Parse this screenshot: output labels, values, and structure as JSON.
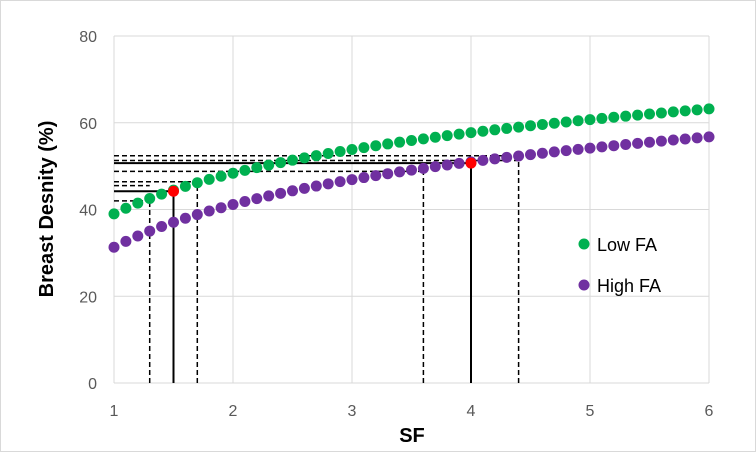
{
  "chart_data": {
    "type": "scatter",
    "xlabel": "SF",
    "ylabel": "Breast Desnity (%)",
    "xlim": [
      1,
      6
    ],
    "ylim": [
      0,
      80
    ],
    "x_ticks": [
      "1",
      "2",
      "3",
      "4",
      "5",
      "6"
    ],
    "y_ticks": [
      "0",
      "20",
      "40",
      "60",
      "80"
    ],
    "grid": "major",
    "legend_position": "right",
    "series": [
      {
        "name": "Low FA",
        "color": "#00B050",
        "x_start": 1.0,
        "x_step": 0.1,
        "a": 39.0,
        "b": 13.5
      },
      {
        "name": "High FA",
        "color": "#7030A0",
        "x_start": 1.0,
        "x_step": 0.1,
        "a": 31.3,
        "b": 14.2
      }
    ],
    "highlight_points": [
      {
        "x": 1.5,
        "y": 44.2,
        "color": "#FF0000"
      },
      {
        "x": 4.0,
        "y": 50.7,
        "color": "#FF0000"
      }
    ],
    "reference_lines": {
      "solid": [
        {
          "x": 1.5,
          "y": 44.2
        },
        {
          "x": 4.0,
          "y": 50.7
        }
      ],
      "dashed": [
        {
          "x": 1.3,
          "y": 42.0
        },
        {
          "x": 1.7,
          "y": 46.4
        },
        {
          "x": 3.6,
          "y": 48.8
        },
        {
          "x": 4.4,
          "y": 52.4
        }
      ],
      "dashed_horizontal_extra": [
        45.5,
        51.3,
        52.4
      ]
    }
  }
}
